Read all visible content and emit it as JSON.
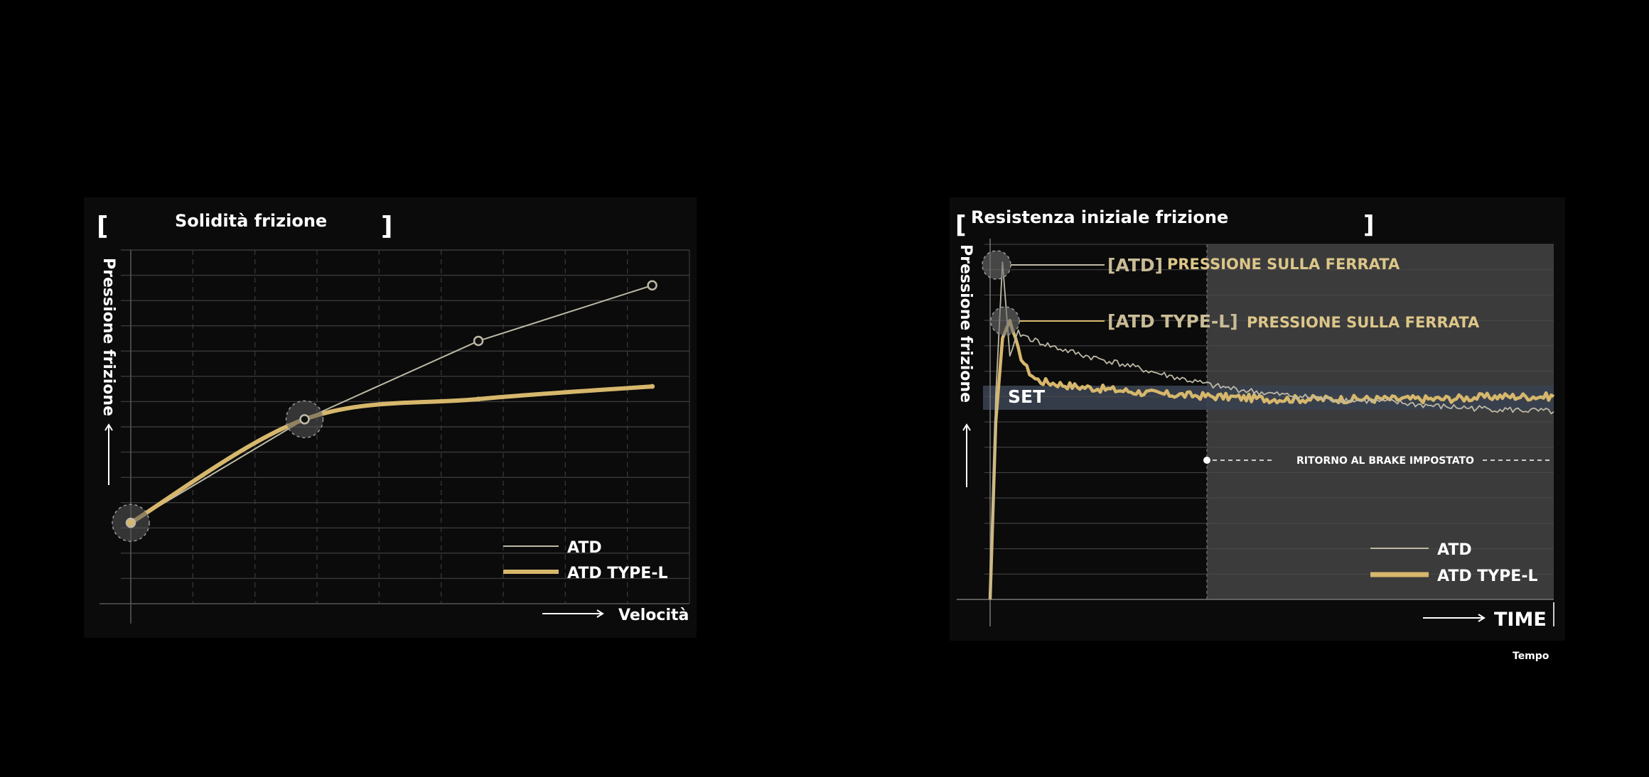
{
  "colors": {
    "atd": "#bdb9a6",
    "atd_type_l": "#d6b76c",
    "background": "#000000",
    "panel": "#0b0b0b",
    "grid": "#3a3a3a",
    "shade": "#3b3b3b",
    "set_band": "#3a4150",
    "label_gold": "#dcc689"
  },
  "chart_data": [
    {
      "type": "line",
      "title": "Solidità frizione",
      "xlabel": "Velocità",
      "ylabel": "Pressione frizione",
      "xlim": [
        0,
        9
      ],
      "ylim": [
        0,
        14
      ],
      "grid": true,
      "legend": "bottom-right",
      "series": [
        {
          "name": "ATD",
          "x": [
            0,
            2.8,
            5.6,
            8.4
          ],
          "y": [
            3.2,
            7.3,
            10.4,
            12.6
          ]
        },
        {
          "name": "ATD TYPE-L",
          "x": [
            0,
            2.8,
            5.6,
            8.4
          ],
          "y": [
            3.2,
            7.3,
            8.1,
            8.6
          ]
        }
      ]
    },
    {
      "type": "line",
      "title": "Resistenza iniziale frizione",
      "xlabel": "TIME",
      "ylabel": "Pressione frizione",
      "xlim": [
        0,
        100
      ],
      "ylim": [
        0,
        14
      ],
      "grid": true,
      "legend": "bottom-right",
      "series": [
        {
          "name": "ATD",
          "x": [
            0,
            1,
            2.2,
            3.5,
            5,
            8,
            12,
            17,
            23,
            30,
            40,
            50,
            60,
            70,
            80,
            90,
            100
          ],
          "y": [
            0,
            8,
            13.3,
            9.6,
            10.5,
            10.2,
            9.9,
            9.6,
            9.3,
            8.9,
            8.4,
            8.1,
            7.9,
            7.8,
            7.6,
            7.5,
            7.4
          ]
        },
        {
          "name": "ATD TYPE-L",
          "x": [
            0,
            1,
            2.2,
            3.5,
            5,
            6.5,
            8,
            9,
            12,
            15,
            20,
            25,
            30,
            40,
            50,
            60,
            70,
            80,
            90,
            100
          ],
          "y": [
            0,
            7,
            10.3,
            11.0,
            9.8,
            9.1,
            8.7,
            8.6,
            8.5,
            8.4,
            8.3,
            8.2,
            8.1,
            8.0,
            7.9,
            7.9,
            7.9,
            7.9,
            8.0,
            8.0
          ]
        }
      ],
      "annotations": {
        "atd_peak_tag": "[ATD]",
        "atd_peak_label": "PRESSIONE SULLA FERRATA",
        "typel_peak_tag": "[ATD TYPE-L]",
        "typel_peak_label": "PRESSIONE SULLA FERRATA",
        "set_band": "SET",
        "return_label": "RITORNO AL BRAKE IMPOSTATO"
      }
    }
  ],
  "footer": {
    "tempo": "Tempo"
  }
}
